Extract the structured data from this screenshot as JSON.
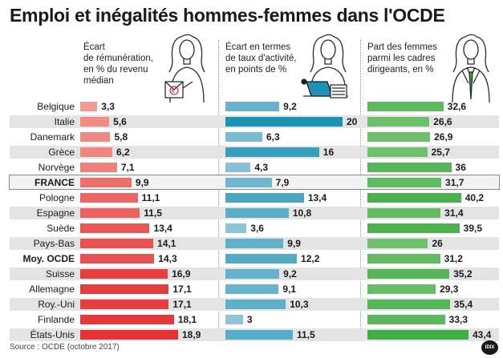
{
  "title": "Emploi et inégalités hommes-femmes dans l'OCDE",
  "source": "Source : OCDE (octobre 2017)",
  "logo_text": "IDIX",
  "chart_data": {
    "type": "bar",
    "orientation": "horizontal",
    "categories": [
      "Belgique",
      "Italie",
      "Danemark",
      "Grèce",
      "Norvège",
      "FRANCE",
      "Pologne",
      "Espagne",
      "Suède",
      "Pays-Bas",
      "Moy. OCDE",
      "Suisse",
      "Allemagne",
      "Roy.-Uni",
      "Finlande",
      "États-Unis"
    ],
    "category_labels": [
      "Belgique",
      "Italie",
      "Danemark",
      "Grèce",
      "Norvège",
      "FRANCE",
      "Pologne",
      "Espagne",
      "Suède",
      "Pays-Bas",
      "Moy. OCDE",
      "Suisse",
      "Allemagne",
      "Roy.-Uni",
      "Finlande",
      "États-Unis"
    ],
    "highlight_category": "FRANCE",
    "bold_categories": [
      "FRANCE",
      "Moy. OCDE"
    ],
    "series": [
      {
        "name": "Écart de rémunération, en % du revenu médian",
        "values": [
          3.3,
          5.6,
          5.8,
          6.2,
          7.1,
          9.9,
          11.1,
          11.5,
          13.4,
          14.1,
          14.3,
          16.9,
          17.1,
          17.1,
          18.1,
          18.9
        ],
        "labels": [
          "3,3",
          "5,6",
          "5,8",
          "6,2",
          "7,1",
          "9,9",
          "11,1",
          "11,5",
          "13,4",
          "14,1",
          "14,3",
          "16,9",
          "17,1",
          "17,1",
          "18,1",
          "18,9"
        ],
        "color_low": "#f4b1a5",
        "color_high": "#e42a2f"
      },
      {
        "name": "Écart en termes de taux d'activité, en points de %",
        "values": [
          9.2,
          20,
          6.3,
          16,
          4.3,
          7.9,
          13.4,
          10.8,
          3.6,
          9.9,
          12.2,
          9.2,
          9.1,
          10.3,
          3,
          11.5
        ],
        "labels": [
          "9,2",
          "20",
          "6,3",
          "16",
          "4,3",
          "7,9",
          "13,4",
          "10,8",
          "3,6",
          "9,9",
          "12,2",
          "9,2",
          "9,1",
          "10,3",
          "3",
          "11,5"
        ],
        "color_low": "#a6cde0",
        "color_high": "#1c93b4"
      },
      {
        "name": "Part des femmes parmi les cadres dirigeants, en %",
        "values": [
          32.6,
          26.6,
          26.9,
          25.7,
          36,
          31.7,
          40.2,
          31.4,
          39.5,
          26,
          31.2,
          35.2,
          29.3,
          35.4,
          33.3,
          43.4
        ],
        "labels": [
          "32,6",
          "26,6",
          "26,9",
          "25,7",
          "36",
          "31,7",
          "40,2",
          "31,4",
          "39,5",
          "26",
          "31,2",
          "35,2",
          "29,3",
          "35,4",
          "33,3",
          "43,4"
        ],
        "color_low": "#b5dca3",
        "color_high": "#3eab45"
      }
    ],
    "grid": false,
    "legend": "none"
  },
  "headers": [
    "Écart\nde rémunération,\nen % du revenu\nmédian",
    "Écart en termes\nde taux d'activité,\nen points de %",
    "Part des femmes\nparmi les cadres\ndirigeants, en %"
  ]
}
